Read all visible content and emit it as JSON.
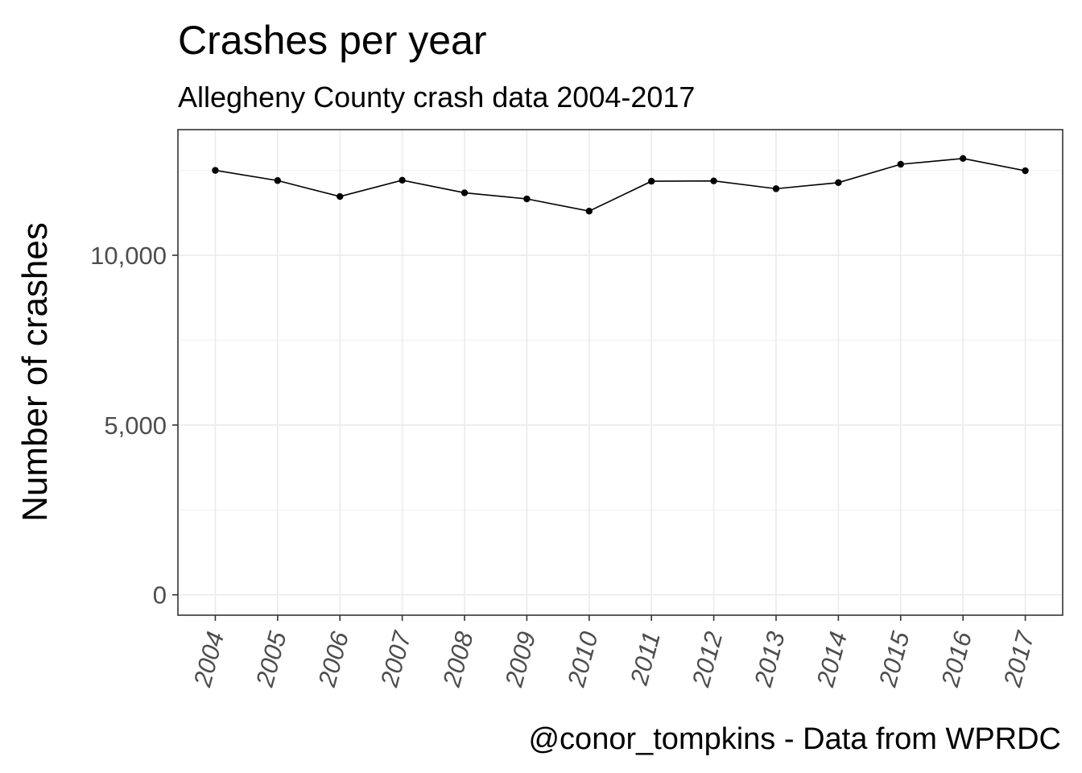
{
  "chart_data": {
    "type": "line",
    "title": "Crashes per year",
    "subtitle": "Allegheny County crash data 2004-2017",
    "xlabel": "",
    "ylabel": "Number of crashes",
    "caption": "@conor_tompkins - Data from WPRDC",
    "x": [
      "2004",
      "2005",
      "2006",
      "2007",
      "2008",
      "2009",
      "2010",
      "2011",
      "2012",
      "2013",
      "2014",
      "2015",
      "2016",
      "2017"
    ],
    "values": [
      12500,
      12200,
      11730,
      12210,
      11840,
      11660,
      11300,
      12180,
      12190,
      11960,
      12140,
      12680,
      12850,
      12490
    ],
    "ylim": [
      -600,
      13700
    ],
    "yticks": [
      0,
      5000,
      10000
    ],
    "ytick_labels": [
      "0",
      "5,000",
      "10,000"
    ],
    "yminor": [
      2500,
      7500,
      12500
    ],
    "grid": true,
    "legend": "none",
    "x_tick_rotation": "angled"
  }
}
